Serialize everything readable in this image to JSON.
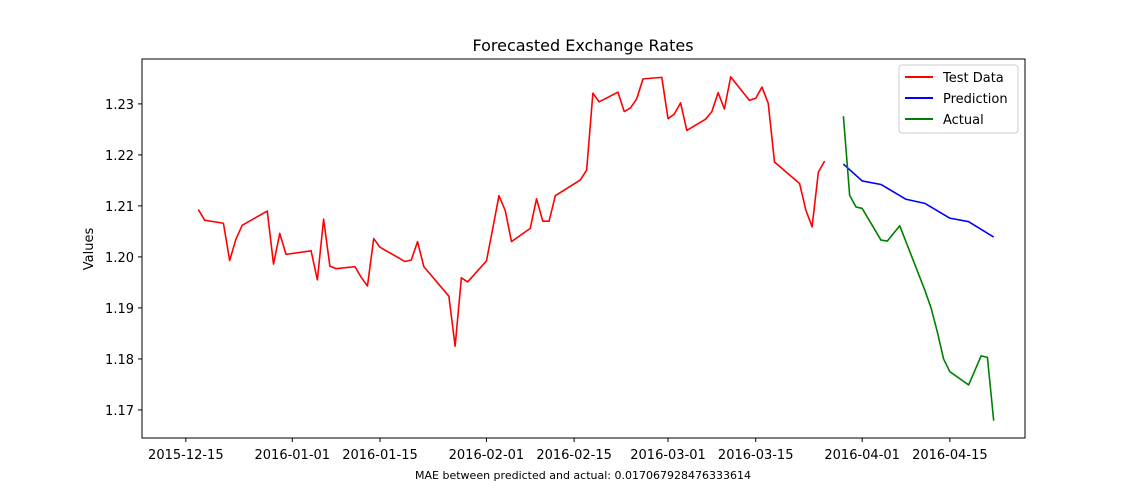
{
  "chart_data": {
    "type": "line",
    "title": "Forecasted Exchange Rates",
    "xlabel": "",
    "ylabel": "Values",
    "caption": "MAE between predicted and actual: 0.017067928476333614",
    "xlim": [
      "2015-12-08",
      "2016-04-27"
    ],
    "ylim": [
      1.1645,
      1.2388
    ],
    "x_ticks": [
      "2015-12-15",
      "2016-01-01",
      "2016-01-15",
      "2016-02-01",
      "2016-02-15",
      "2016-03-01",
      "2016-03-15",
      "2016-04-01",
      "2016-04-15"
    ],
    "y_ticks": [
      1.17,
      1.18,
      1.19,
      1.2,
      1.21,
      1.22,
      1.23
    ],
    "legend_position": "top-right",
    "grid": false,
    "series": [
      {
        "name": "Test Data",
        "color": "#ff0000",
        "points": [
          [
            "2015-12-17",
            1.2093
          ],
          [
            "2015-12-18",
            1.2072
          ],
          [
            "2015-12-21",
            1.2066
          ],
          [
            "2015-12-22",
            1.1993
          ],
          [
            "2015-12-23",
            1.2035
          ],
          [
            "2015-12-24",
            1.2062
          ],
          [
            "2015-12-28",
            1.209
          ],
          [
            "2015-12-29",
            1.1986
          ],
          [
            "2015-12-30",
            1.2046
          ],
          [
            "2015-12-31",
            1.2005
          ],
          [
            "2016-01-04",
            1.2012
          ],
          [
            "2016-01-05",
            1.1955
          ],
          [
            "2016-01-06",
            1.2074
          ],
          [
            "2016-01-07",
            1.1982
          ],
          [
            "2016-01-08",
            1.1977
          ],
          [
            "2016-01-11",
            1.1981
          ],
          [
            "2016-01-12",
            1.196
          ],
          [
            "2016-01-13",
            1.1943
          ],
          [
            "2016-01-14",
            1.2036
          ],
          [
            "2016-01-15",
            1.2019
          ],
          [
            "2016-01-19",
            1.1991
          ],
          [
            "2016-01-20",
            1.1994
          ],
          [
            "2016-01-21",
            1.203
          ],
          [
            "2016-01-22",
            1.1981
          ],
          [
            "2016-01-26",
            1.1923
          ],
          [
            "2016-01-27",
            1.1825
          ],
          [
            "2016-01-28",
            1.1959
          ],
          [
            "2016-01-29",
            1.1951
          ],
          [
            "2016-02-01",
            1.1992
          ],
          [
            "2016-02-02",
            1.2055
          ],
          [
            "2016-02-03",
            1.212
          ],
          [
            "2016-02-04",
            1.2091
          ],
          [
            "2016-02-05",
            1.203
          ],
          [
            "2016-02-08",
            1.2056
          ],
          [
            "2016-02-09",
            1.2114
          ],
          [
            "2016-02-10",
            1.207
          ],
          [
            "2016-02-11",
            1.207
          ],
          [
            "2016-02-12",
            1.212
          ],
          [
            "2016-02-16",
            1.2151
          ],
          [
            "2016-02-17",
            1.217
          ],
          [
            "2016-02-18",
            1.2321
          ],
          [
            "2016-02-19",
            1.2304
          ],
          [
            "2016-02-22",
            1.2323
          ],
          [
            "2016-02-23",
            1.2285
          ],
          [
            "2016-02-24",
            1.2292
          ],
          [
            "2016-02-25",
            1.231
          ],
          [
            "2016-02-26",
            1.2349
          ],
          [
            "2016-02-29",
            1.2352
          ],
          [
            "2016-03-01",
            1.2271
          ],
          [
            "2016-03-02",
            1.228
          ],
          [
            "2016-03-03",
            1.2302
          ],
          [
            "2016-03-04",
            1.2248
          ],
          [
            "2016-03-07",
            1.227
          ],
          [
            "2016-03-08",
            1.2285
          ],
          [
            "2016-03-09",
            1.2322
          ],
          [
            "2016-03-10",
            1.229
          ],
          [
            "2016-03-11",
            1.2353
          ],
          [
            "2016-03-14",
            1.2307
          ],
          [
            "2016-03-15",
            1.2311
          ],
          [
            "2016-03-16",
            1.2333
          ],
          [
            "2016-03-17",
            1.2301
          ],
          [
            "2016-03-18",
            1.2186
          ],
          [
            "2016-03-22",
            1.2144
          ],
          [
            "2016-03-23",
            1.2092
          ],
          [
            "2016-03-24",
            1.2059
          ],
          [
            "2016-03-25",
            1.2166
          ],
          [
            "2016-03-26",
            1.2188
          ]
        ]
      },
      {
        "name": "Prediction",
        "color": "#0000ff",
        "points": [
          [
            "2016-03-29",
            1.2182
          ],
          [
            "2016-04-01",
            1.2149
          ],
          [
            "2016-04-04",
            1.2142
          ],
          [
            "2016-04-08",
            1.2113
          ],
          [
            "2016-04-11",
            1.2105
          ],
          [
            "2016-04-15",
            1.2076
          ],
          [
            "2016-04-18",
            1.2069
          ],
          [
            "2016-04-22",
            1.2039
          ]
        ]
      },
      {
        "name": "Actual",
        "color": "#008000",
        "points": [
          [
            "2016-03-29",
            1.2276
          ],
          [
            "2016-03-30",
            1.2121
          ],
          [
            "2016-03-31",
            1.2098
          ],
          [
            "2016-04-01",
            1.2095
          ],
          [
            "2016-04-04",
            1.2033
          ],
          [
            "2016-04-05",
            1.2031
          ],
          [
            "2016-04-07",
            1.2061
          ],
          [
            "2016-04-11",
            1.1935
          ],
          [
            "2016-04-12",
            1.19
          ],
          [
            "2016-04-13",
            1.1853
          ],
          [
            "2016-04-14",
            1.18
          ],
          [
            "2016-04-15",
            1.1775
          ],
          [
            "2016-04-18",
            1.1749
          ],
          [
            "2016-04-20",
            1.1806
          ],
          [
            "2016-04-21",
            1.1803
          ],
          [
            "2016-04-22",
            1.1679
          ]
        ]
      }
    ]
  }
}
